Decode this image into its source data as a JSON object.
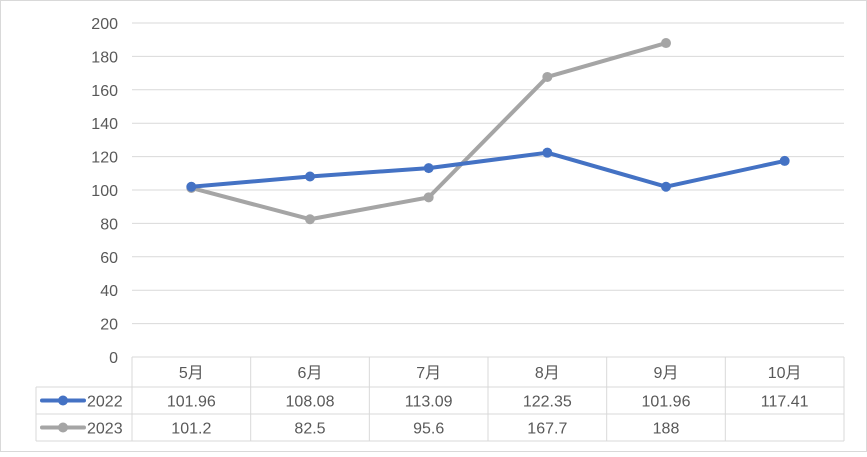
{
  "chart_data": {
    "type": "line",
    "title": "",
    "xlabel": "",
    "ylabel": "",
    "ylim": [
      0,
      200
    ],
    "yticks": [
      "0",
      "20",
      "40",
      "60",
      "80",
      "100",
      "120",
      "140",
      "160",
      "180",
      "200"
    ],
    "grid": true,
    "legend": "data-table-left",
    "categories": [
      "5月",
      "6月",
      "7月",
      "8月",
      "9月",
      "10月"
    ],
    "series": [
      {
        "name": "2022",
        "color": "#4472C4",
        "values": [
          101.96,
          108.08,
          113.09,
          122.35,
          101.96,
          117.41
        ],
        "labels": [
          "101.96",
          "108.08",
          "113.09",
          "122.35",
          "101.96",
          "117.41"
        ]
      },
      {
        "name": "2023",
        "color": "#A5A5A5",
        "values": [
          101.2,
          82.5,
          95.6,
          167.7,
          188,
          null
        ],
        "labels": [
          "101.2",
          "82.5",
          "95.6",
          "167.7",
          "188",
          ""
        ]
      }
    ]
  }
}
